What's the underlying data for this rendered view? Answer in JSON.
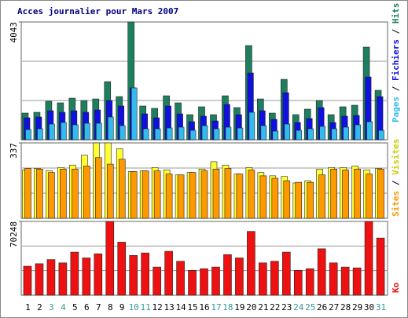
{
  "title": "Acces journalier pour Mars 2007",
  "legend_separator": " / ",
  "chart_data": [
    {
      "type": "bar",
      "ylim": [
        0,
        4043
      ],
      "yticks": [
        4043
      ],
      "series": [
        {
          "name": "Hits",
          "color": "#1e7f5e",
          "values": [
            916,
            943,
            1321,
            1267,
            1428,
            1348,
            1401,
            1995,
            1482,
            4043,
            1159,
            1078,
            1509,
            1267,
            862,
            1132,
            862,
            1509,
            1105,
            3234,
            1401,
            916,
            2075,
            862,
            1051,
            1348,
            862,
            1132,
            1186,
            3180,
            1698
          ]
        },
        {
          "name": "Fichiers",
          "color": "#1010e0",
          "values": [
            755,
            782,
            997,
            943,
            997,
            943,
            1024,
            1348,
            1159,
            1779,
            889,
            755,
            1159,
            889,
            620,
            809,
            647,
            1213,
            862,
            2291,
            997,
            701,
            1617,
            593,
            728,
            1105,
            593,
            809,
            835,
            2156,
            1482
          ]
        },
        {
          "name": "Pages",
          "color": "#33bbee",
          "values": [
            350,
            377,
            539,
            593,
            512,
            566,
            566,
            782,
            485,
            1779,
            377,
            377,
            404,
            431,
            323,
            485,
            377,
            431,
            404,
            943,
            485,
            296,
            539,
            323,
            377,
            458,
            377,
            431,
            512,
            620,
            323
          ]
        }
      ]
    },
    {
      "type": "bar",
      "ylim": [
        0,
        337
      ],
      "yticks": [
        337
      ],
      "series": [
        {
          "name": "Visites",
          "color": "#ffff33",
          "text_color": "#cccc00",
          "values": [
            216,
            223,
            212,
            227,
            238,
            282,
            337,
            337,
            311,
            209,
            212,
            227,
            216,
            194,
            205,
            220,
            253,
            238,
            198,
            227,
            205,
            190,
            187,
            158,
            168,
            220,
            227,
            227,
            234,
            216,
            223
          ]
        },
        {
          "name": "Sites",
          "color": "#ff9900",
          "values": [
            223,
            220,
            205,
            220,
            220,
            234,
            271,
            242,
            264,
            209,
            212,
            212,
            198,
            194,
            205,
            212,
            220,
            223,
            198,
            216,
            190,
            179,
            168,
            161,
            161,
            194,
            220,
            216,
            220,
            198,
            220
          ]
        }
      ]
    },
    {
      "type": "bar",
      "ylim": [
        0,
        70248
      ],
      "yticks": [
        70248
      ],
      "categories": [
        "1",
        "2",
        "3",
        "4",
        "5",
        "6",
        "7",
        "8",
        "9",
        "10",
        "11",
        "12",
        "13",
        "14",
        "15",
        "16",
        "17",
        "18",
        "19",
        "20",
        "21",
        "22",
        "23",
        "24",
        "25",
        "26",
        "27",
        "28",
        "29",
        "30",
        "31"
      ],
      "category_color": "#000000",
      "highlight_color": "#339999",
      "highlight_indices": [
        2,
        3,
        9,
        10,
        16,
        17,
        23,
        24,
        30
      ],
      "series": [
        {
          "name": "Ko",
          "color": "#ee1111",
          "values": [
            27626,
            29994,
            33940,
            30783,
            41044,
            35519,
            39466,
            70248,
            50516,
            37887,
            40255,
            26837,
            41833,
            32362,
            23679,
            25258,
            26837,
            38676,
            35519,
            60777,
            30783,
            32362,
            41044,
            23679,
            25258,
            44201,
            30783,
            26837,
            26047,
            70248,
            54462
          ]
        }
      ]
    }
  ]
}
